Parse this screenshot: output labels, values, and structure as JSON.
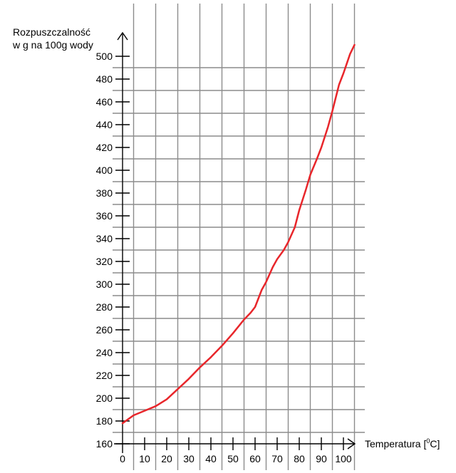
{
  "chart_data": {
    "type": "line",
    "title": "",
    "ylabel_lines": [
      "Rozpuszczalność",
      "w g na 100g wody"
    ],
    "xlabel_prefix": "Temperatura [",
    "xlabel_sup": "0",
    "xlabel_suffix": "C]",
    "xlim": [
      0,
      100
    ],
    "ylim": [
      160,
      500
    ],
    "x_ticks": [
      0,
      10,
      20,
      30,
      40,
      50,
      60,
      70,
      80,
      90,
      100
    ],
    "y_ticks": [
      160,
      180,
      200,
      220,
      240,
      260,
      280,
      300,
      320,
      340,
      360,
      380,
      400,
      420,
      440,
      460,
      480,
      500
    ],
    "grid": true,
    "series": [
      {
        "color": "#e8262b",
        "x": [
          0,
          5,
          10,
          15,
          20,
          25,
          30,
          35,
          40,
          45,
          50,
          55,
          58,
          60,
          63,
          65,
          68,
          70,
          73,
          75,
          78,
          80,
          83,
          85,
          88,
          90,
          93,
          95,
          98,
          100,
          103,
          105
        ],
        "y": [
          178,
          185,
          189,
          193,
          199,
          208,
          217,
          227,
          236,
          246,
          257,
          269,
          275,
          280,
          295,
          302,
          315,
          322,
          330,
          337,
          350,
          365,
          383,
          396,
          410,
          420,
          438,
          452,
          475,
          485,
          502,
          510
        ]
      }
    ]
  }
}
